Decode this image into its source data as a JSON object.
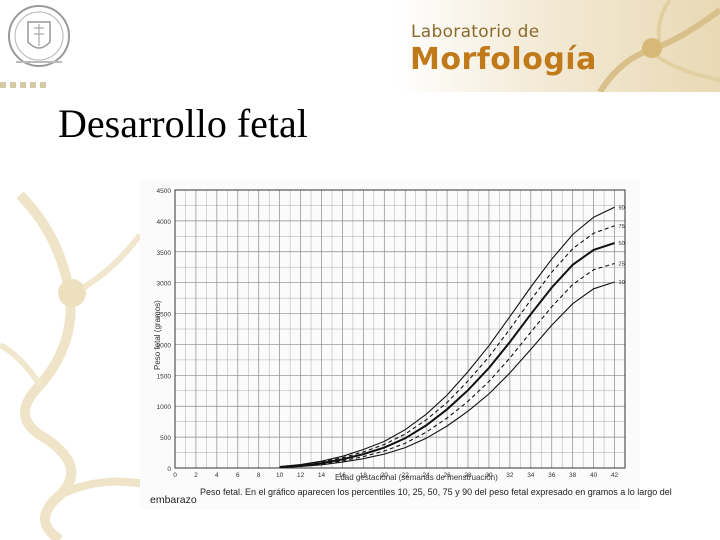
{
  "slide": {
    "title": "Desarrollo fetal",
    "lab_line1": "Laboratorio de",
    "lab_line2": "Morfología",
    "colors": {
      "accent": "#c07a1a",
      "header_bg": "#e9d9b4",
      "grid": "#555555"
    },
    "icons": [
      "university-crest-icon",
      "neuron-decoration-icon"
    ]
  },
  "figure": {
    "caption_left": "embarazo",
    "caption_main": "Peso fetal. En el gráfico aparecen los percentiles 10, 25, 50, 75 y 90 del peso fetal expresado en gramos a lo largo del",
    "xlabel": "Edad gestacional (semanas de menstruación)",
    "ylabel": "Peso fetal (gramos)"
  },
  "chart_data": {
    "type": "line",
    "xlabel": "Edad gestacional (semanas de menstruación)",
    "ylabel": "Peso fetal (gramos)",
    "xlim": [
      0,
      43
    ],
    "ylim": [
      0,
      4500
    ],
    "x_ticks": [
      0,
      2,
      4,
      6,
      8,
      10,
      12,
      14,
      16,
      18,
      20,
      22,
      24,
      26,
      28,
      30,
      32,
      34,
      36,
      38,
      40,
      42
    ],
    "y_ticks": [
      0,
      500,
      1000,
      1500,
      2000,
      2500,
      3000,
      3500,
      4000,
      4500
    ],
    "grid": true,
    "x": [
      10,
      12,
      14,
      16,
      18,
      20,
      22,
      24,
      26,
      28,
      30,
      32,
      34,
      36,
      38,
      40,
      42
    ],
    "series": [
      {
        "name": "90",
        "style": "solid",
        "values": [
          25,
          55,
          110,
          190,
          300,
          430,
          620,
          870,
          1180,
          1560,
          1980,
          2450,
          2930,
          3380,
          3780,
          4060,
          4220
        ]
      },
      {
        "name": "75",
        "style": "dashed",
        "values": [
          20,
          45,
          95,
          165,
          260,
          380,
          550,
          780,
          1060,
          1410,
          1800,
          2250,
          2720,
          3170,
          3550,
          3800,
          3920
        ]
      },
      {
        "name": "50",
        "style": "bold",
        "values": [
          15,
          38,
          80,
          140,
          225,
          330,
          480,
          690,
          950,
          1260,
          1620,
          2040,
          2490,
          2920,
          3290,
          3530,
          3640
        ]
      },
      {
        "name": "25",
        "style": "dashed",
        "values": [
          12,
          30,
          65,
          115,
          185,
          275,
          400,
          580,
          810,
          1080,
          1400,
          1780,
          2200,
          2610,
          2970,
          3210,
          3310
        ]
      },
      {
        "name": "10",
        "style": "solid",
        "values": [
          10,
          24,
          52,
          95,
          150,
          225,
          330,
          480,
          680,
          920,
          1200,
          1540,
          1920,
          2310,
          2660,
          2900,
          3010
        ]
      }
    ]
  }
}
